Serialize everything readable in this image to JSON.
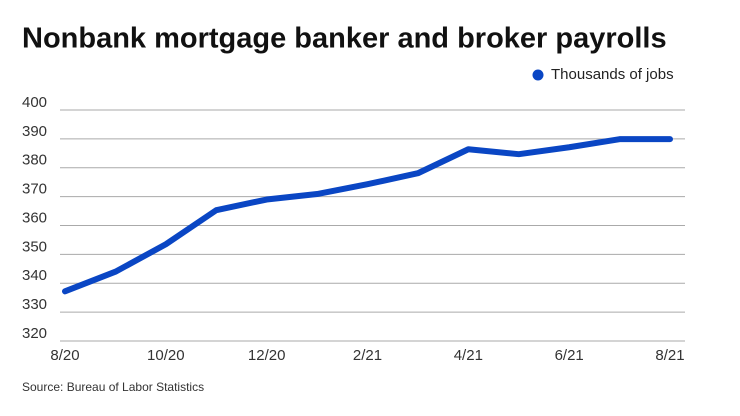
{
  "chart_data": {
    "type": "line",
    "title": "Nonbank mortgage banker and broker payrolls",
    "categories": [
      "8/20",
      null,
      "10/20",
      null,
      "12/20",
      null,
      "2/21",
      null,
      "4/21",
      null,
      "6/21",
      null,
      "8/21"
    ],
    "series": [
      {
        "name": "Thousands of jobs",
        "color": "#0a46c4",
        "values": [
          337.2,
          344,
          353.5,
          365.3,
          369,
          370.9,
          374.3,
          378.1,
          386.4,
          384.7,
          387.1,
          389.9,
          389.9
        ]
      }
    ],
    "ylim": [
      320,
      400
    ],
    "yticks": [
      320,
      330,
      340,
      350,
      360,
      370,
      380,
      390,
      400
    ],
    "grid": true,
    "source": "Source: Bureau of Labor Statistics"
  }
}
